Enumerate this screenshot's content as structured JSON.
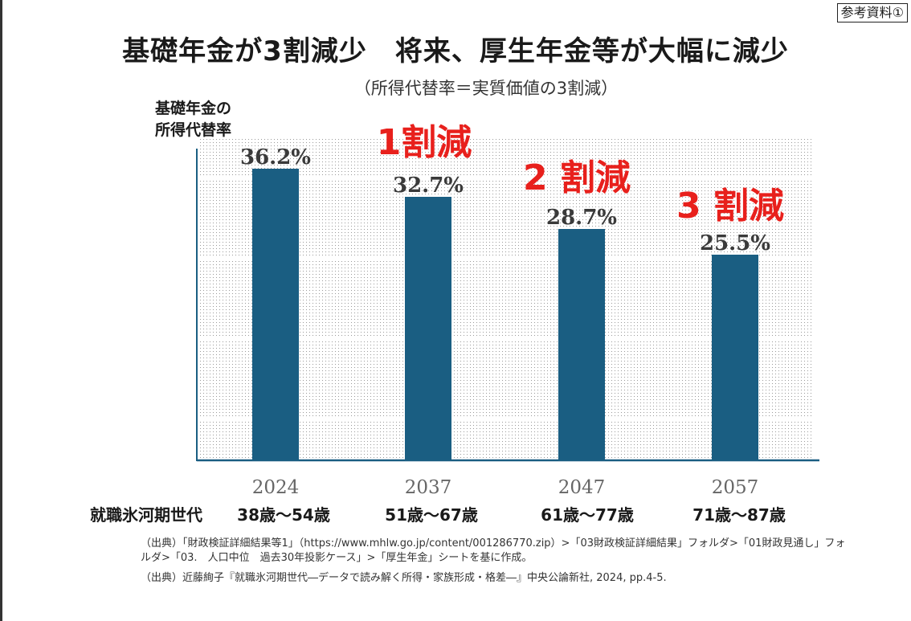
{
  "ref_label": "参考資料①",
  "title": "基礎年金が3割減少　将来、厚生年金等が大幅に減少",
  "subtitle": "（所得代替率＝実質価値の3割減）",
  "y_label_line1": "基礎年金の",
  "y_label_line2": "所得代替率",
  "generation_label": "就職氷河期世代",
  "age_ranges": [
    "38歳〜54歳",
    "51歳〜67歳",
    "61歳〜77歳",
    "71歳〜87歳"
  ],
  "reduction_labels": [
    "1割減",
    "2 割減",
    "3 割減"
  ],
  "source_1": "（出典）「財政検証詳細結果等1」（https://www.mhlw.go.jp/content/001286770.zip）>「03財政検証詳細結果」フォルダ>「01財政見通し」フォルダ>「03.　人口中位　過去30年投影ケース」>「厚生年金」シートを基に作成。",
  "source_2": "（出典）近藤絢子『就職氷河期世代―データで読み解く所得・家族形成・格差―』中央公論新社, 2024, pp.4-5.",
  "colors": {
    "bar": "#1a5e82",
    "reduction": "#e8201c",
    "axis": "#1a5e82"
  },
  "chart_data": {
    "type": "bar",
    "categories": [
      "2024",
      "2037",
      "2047",
      "2057"
    ],
    "values": [
      36.2,
      32.7,
      28.7,
      25.5
    ],
    "data_labels": [
      "36.2%",
      "32.7%",
      "28.7%",
      "25.5%"
    ],
    "ylim": [
      0,
      40
    ],
    "grid": true
  }
}
